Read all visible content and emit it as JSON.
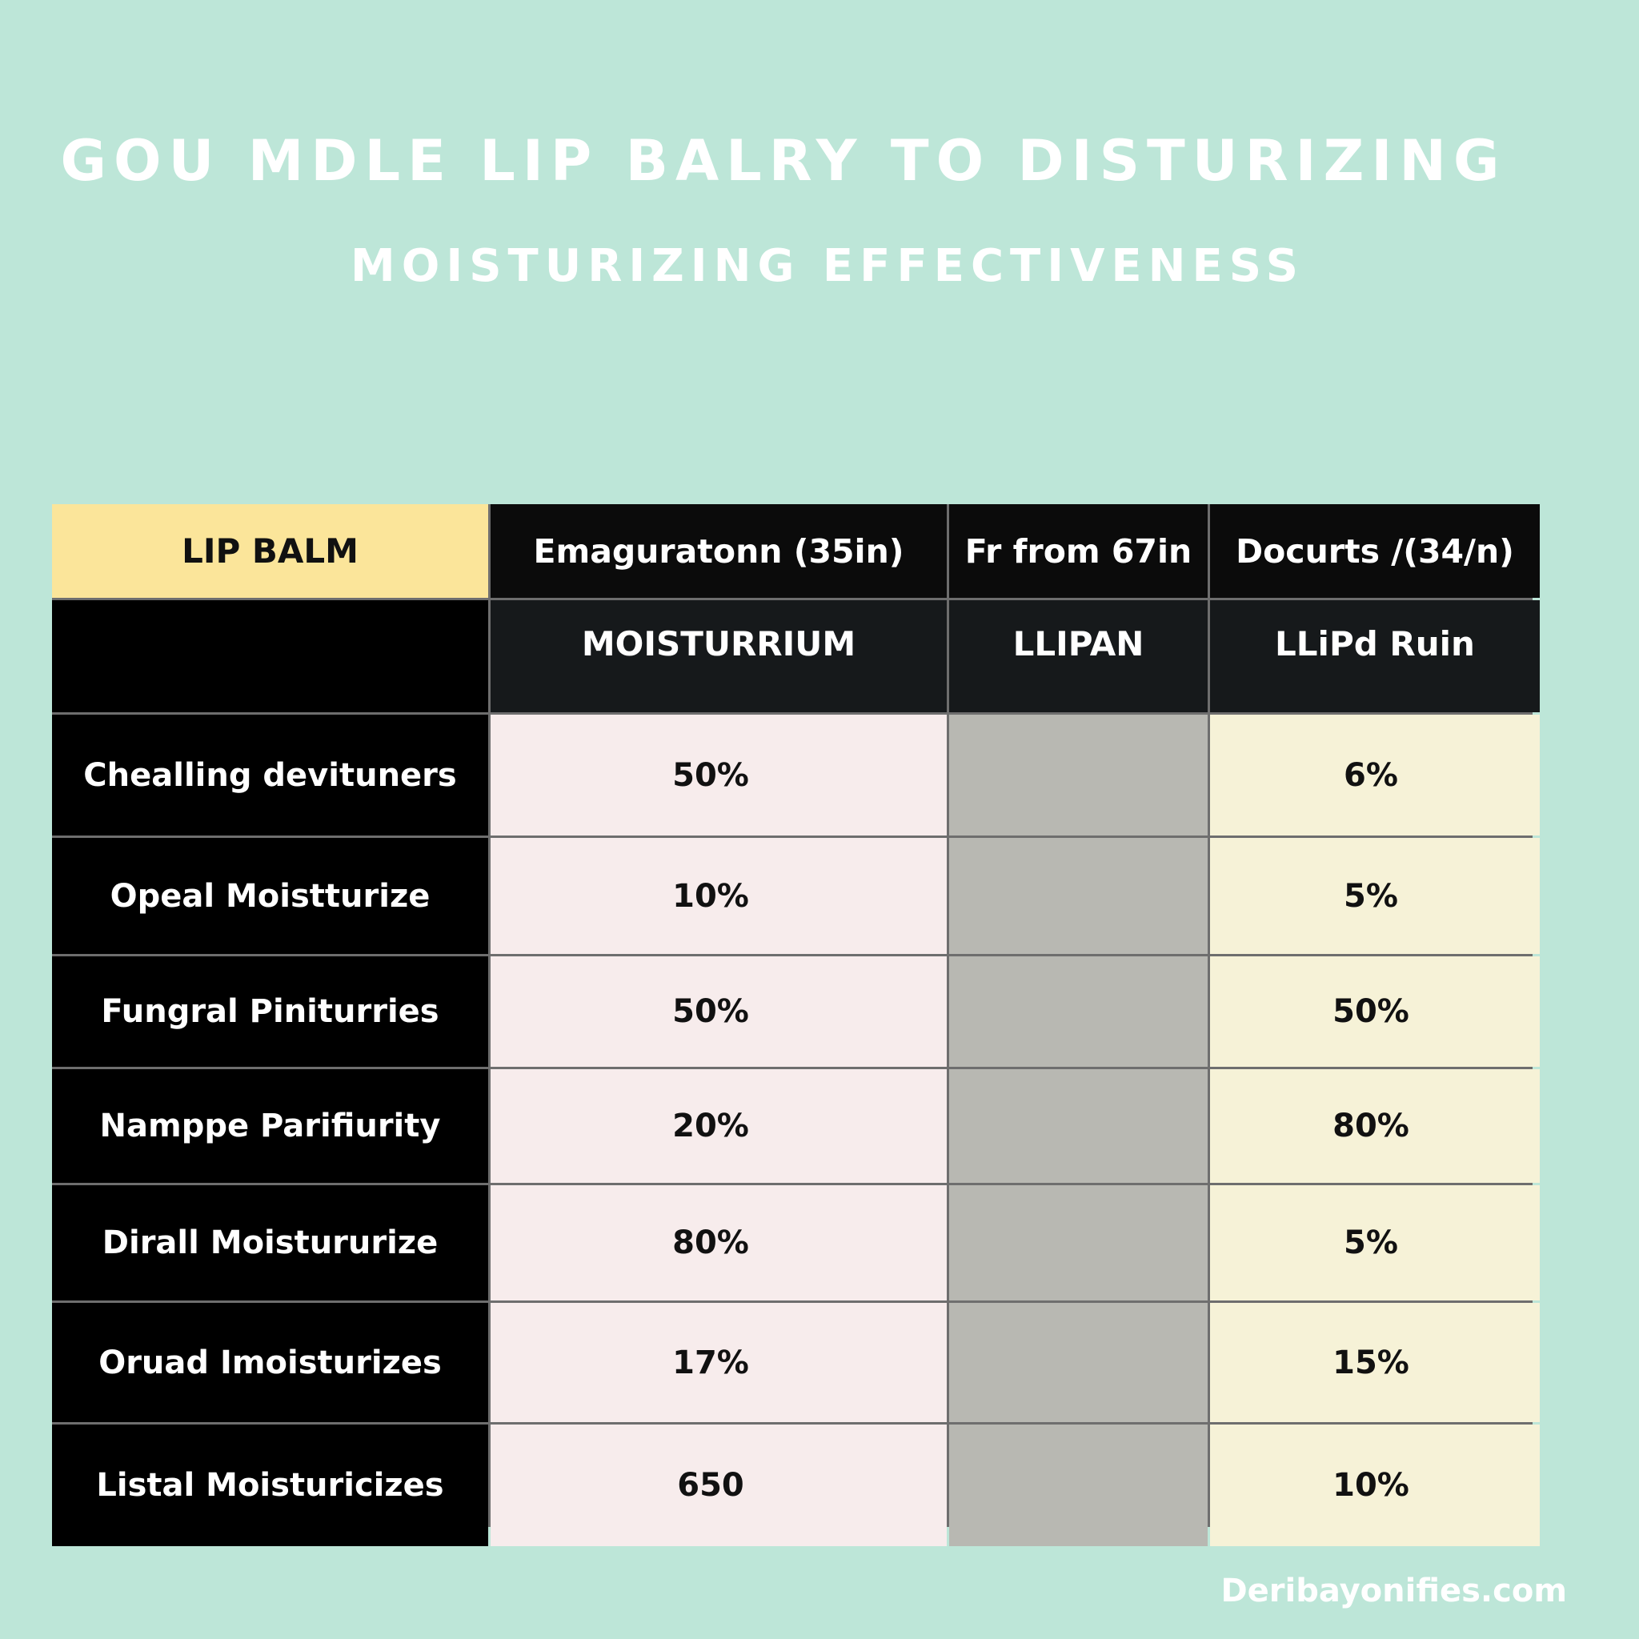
{
  "title": "GOU MDLE LIP BALRY TO DISTURIZING",
  "subtitle": "MOISTURIZING EFFECTIVENESS",
  "table": {
    "corner_label": "LIP BALM",
    "headers": [
      "Emaguratonn (35in)",
      "Fr from 67in",
      "Docurts /(34/n)"
    ],
    "subheaders": [
      "MOISTURRIUM",
      "LLIPAN",
      "LLiPd Ruin"
    ],
    "rows": [
      {
        "label": "Chealling devituners",
        "c1": "50%",
        "c2": "",
        "c3": "6%"
      },
      {
        "label": "Opeal Moistturize",
        "c1": "10%",
        "c2": "",
        "c3": "5%"
      },
      {
        "label": "Fungral Piniturries",
        "c1": "50%",
        "c2": "",
        "c3": "50%"
      },
      {
        "label": "Nampре Parifiurity",
        "c1": "20%",
        "c2": "",
        "c3": "80%"
      },
      {
        "label": "Dirall Moistururiz​e",
        "c1": "80%",
        "c2": "",
        "c3": "5%"
      },
      {
        "label": "Oruad Imoisturizes",
        "c1": "17%",
        "c2": "",
        "c3": "15%"
      },
      {
        "label": "Listal Moisturicizes",
        "c1": "650",
        "c2": "",
        "c3": "10%"
      }
    ]
  },
  "footer": "Deribayonifies.com",
  "colors": {
    "background": "#bde6d8",
    "corner": "#fbe59a",
    "header": "#0b0b0b",
    "label_column": "#000000",
    "col1": "#f7ecec",
    "col2": "#b8b8b2",
    "col3": "#f6f2d7"
  }
}
